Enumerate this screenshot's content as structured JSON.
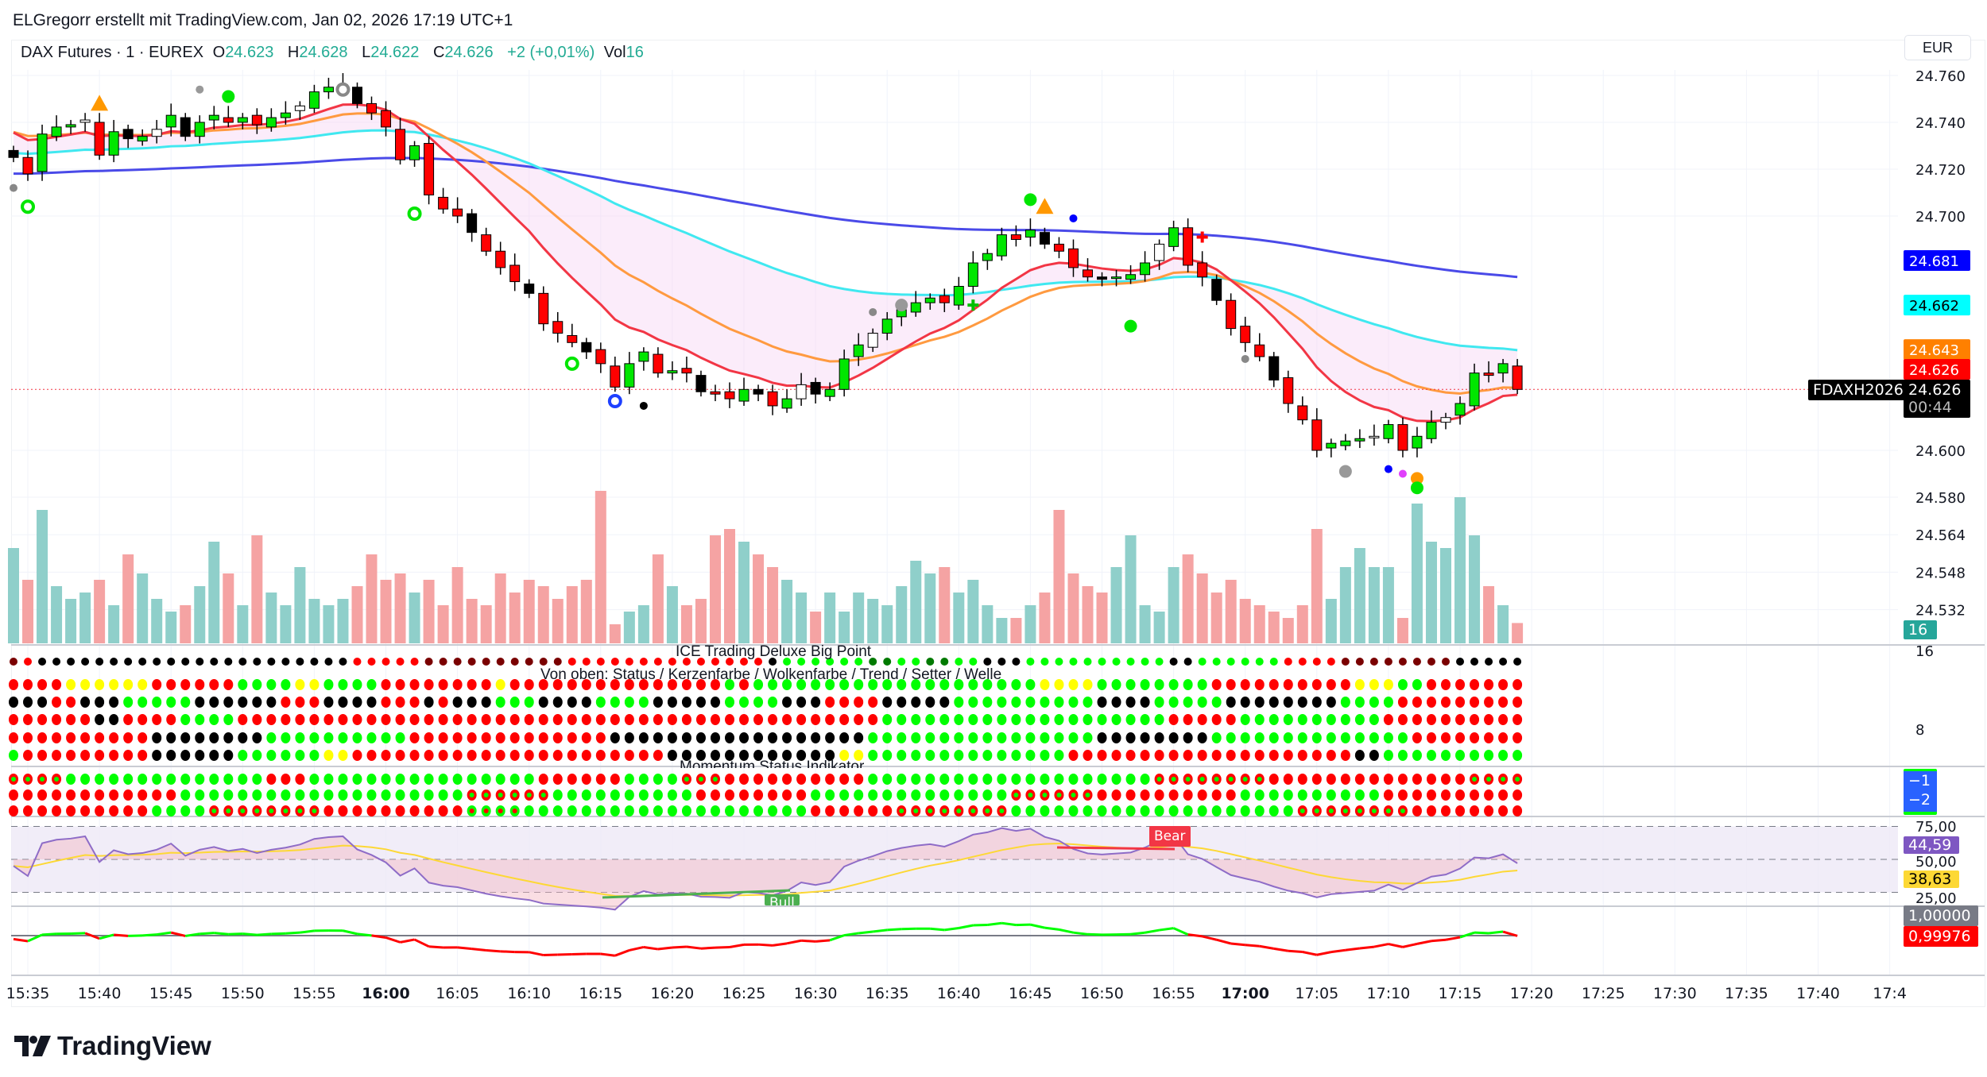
{
  "header": {
    "attribution": "ELGregorr erstellt mit TradingView.com, Jan 02, 2026 17:19 UTC+1"
  },
  "legend": {
    "symbol": "DAX Futures · 1 · EUREX",
    "o_label": "O",
    "o": "24.623",
    "h_label": "H",
    "h": "24.628",
    "l_label": "L",
    "l": "24.622",
    "c_label": "C",
    "c": "24.626",
    "change": "+2 (+0,01%)",
    "vol_label": "Vol",
    "vol": "16"
  },
  "currency": "EUR",
  "contract_label": "FDAXH2026",
  "countdown": "00:44",
  "footer": {
    "logo_text": "TradingView"
  },
  "colors": {
    "up": "#00e600",
    "down": "#ff0000",
    "vol_up": "#8fcfca",
    "vol_down": "#f5a3a3",
    "ema_fast": "#f23645",
    "ema_mid": "#ff9a40",
    "ema_slow": "#40e8f0",
    "ema_long": "#4a4ae8",
    "rsi": "#8e6cc7",
    "rsi_signal": "#fdd835"
  },
  "chart_data": {
    "type": "candlestick",
    "title": "DAX Futures · 1 · EUREX",
    "start_time": "15:34",
    "interval_minutes": 1,
    "closes": [
      24725,
      24718,
      24735,
      24738,
      24739,
      24741,
      24726,
      24736,
      24733,
      24734,
      24737,
      24743,
      24734,
      24740,
      24743,
      24740,
      24742,
      24739,
      24742,
      24744,
      24747,
      24753,
      24755,
      24756,
      24748,
      24744,
      24738,
      24724,
      24730,
      24709,
      24703,
      24700,
      24693,
      24685,
      24678,
      24672,
      24667,
      24654,
      24650,
      24646,
      24642,
      24637,
      24627,
      24637,
      24642,
      24633,
      24634,
      24633,
      24625,
      24624,
      24622,
      24626,
      24624,
      24619,
      24622,
      24628,
      24624,
      24626,
      24639,
      24645,
      24650,
      24656,
      24660,
      24663,
      24665,
      24663,
      24670,
      24680,
      24684,
      24692,
      24690,
      24694,
      24688,
      24685,
      24678,
      24674,
      24673,
      24674,
      24675,
      24680,
      24688,
      24695,
      24679,
      24674,
      24664,
      24652,
      24646,
      24640,
      24630,
      24620,
      24613,
      24600,
      24603,
      24604,
      24605,
      24606,
      24611,
      24600,
      24606,
      24612,
      24614,
      24620,
      24633,
      24632,
      24637,
      24626
    ],
    "volume": [
      75,
      50,
      105,
      45,
      35,
      40,
      50,
      30,
      70,
      55,
      35,
      25,
      30,
      45,
      80,
      55,
      30,
      85,
      40,
      30,
      60,
      35,
      30,
      35,
      45,
      70,
      50,
      55,
      40,
      50,
      30,
      60,
      35,
      30,
      55,
      40,
      50,
      45,
      35,
      45,
      50,
      120,
      15,
      25,
      30,
      70,
      45,
      30,
      35,
      85,
      90,
      80,
      70,
      60,
      50,
      40,
      25,
      40,
      25,
      40,
      35,
      30,
      45,
      65,
      55,
      60,
      40,
      50,
      30,
      20,
      20,
      30,
      40,
      105,
      55,
      45,
      40,
      60,
      85,
      30,
      25,
      60,
      70,
      55,
      40,
      50,
      35,
      30,
      25,
      20,
      30,
      90,
      35,
      60,
      75,
      60,
      60,
      20,
      110,
      80,
      75,
      115,
      85,
      45,
      30,
      16
    ],
    "price_axis": [
      "24.760",
      "24.740",
      "24.720",
      "24.700",
      "24.600",
      "24.580",
      "24.564",
      "24.548",
      "24.532"
    ],
    "price_axis_values": [
      24760,
      24740,
      24720,
      24700,
      24600,
      24580,
      24564,
      24548,
      24532
    ],
    "volume_axis": [
      "16",
      "8"
    ],
    "time_axis": [
      "15:35",
      "15:40",
      "15:45",
      "15:50",
      "15:55",
      "16:00",
      "16:05",
      "16:10",
      "16:15",
      "16:20",
      "16:25",
      "16:30",
      "16:35",
      "16:40",
      "16:45",
      "16:50",
      "16:55",
      "17:00",
      "17:05",
      "17:10",
      "17:15",
      "17:20",
      "17:25",
      "17:30",
      "17:35",
      "17:40",
      "17:4"
    ],
    "bold_times": [
      "16:00",
      "17:00"
    ],
    "ma_labels": [
      {
        "value": "24.681",
        "price": 24681,
        "bg": "#0000ff",
        "fg": "#ffffff"
      },
      {
        "value": "24.662",
        "price": 24662,
        "bg": "#00ffff",
        "fg": "#000000"
      },
      {
        "value": "24.643",
        "price": 24643,
        "bg": "#ff8000",
        "fg": "#ffffff"
      },
      {
        "value": "24.626",
        "price": 24626,
        "bg": "#ff0000",
        "fg": "#ffffff"
      }
    ],
    "last_price": "24.626",
    "last_price_value": 24626,
    "volume_label": "16",
    "markers": [
      {
        "i": 6,
        "p": 24748,
        "shape": "triangle",
        "color": "#ff9800"
      },
      {
        "i": 15,
        "p": 24751,
        "shape": "circle",
        "color": "#00e600"
      },
      {
        "i": 13,
        "p": 24754,
        "shape": "dot",
        "color": "#999999"
      },
      {
        "i": 23,
        "p": 24754,
        "shape": "ring",
        "color": "#888888"
      },
      {
        "i": 1,
        "p": 24704,
        "shape": "ring",
        "color": "#00e600"
      },
      {
        "i": 0,
        "p": 24712,
        "shape": "dot",
        "color": "#888888"
      },
      {
        "i": 28,
        "p": 24701,
        "shape": "ring",
        "color": "#00e600"
      },
      {
        "i": 39,
        "p": 24637,
        "shape": "ring",
        "color": "#00e600"
      },
      {
        "i": 42,
        "p": 24621,
        "shape": "ring",
        "color": "#1e40ff"
      },
      {
        "i": 44,
        "p": 24619,
        "shape": "dot",
        "color": "#000000"
      },
      {
        "i": 60,
        "p": 24659,
        "shape": "dot",
        "color": "#888888"
      },
      {
        "i": 62,
        "p": 24662,
        "shape": "circle",
        "color": "#999999"
      },
      {
        "i": 71,
        "p": 24707,
        "shape": "circle",
        "color": "#00e600"
      },
      {
        "i": 72,
        "p": 24704,
        "shape": "triangle",
        "color": "#ff9800"
      },
      {
        "i": 74,
        "p": 24699,
        "shape": "dot",
        "color": "#0000ff"
      },
      {
        "i": 78,
        "p": 24653,
        "shape": "circle",
        "color": "#00e600"
      },
      {
        "i": 83,
        "p": 24691,
        "shape": "cross",
        "color": "#ff0000"
      },
      {
        "i": 67,
        "p": 24662,
        "shape": "cross",
        "color": "#00c000"
      },
      {
        "i": 86,
        "p": 24639,
        "shape": "dot",
        "color": "#888888"
      },
      {
        "i": 93,
        "p": 24591,
        "shape": "circle",
        "color": "#999999"
      },
      {
        "i": 96,
        "p": 24592,
        "shape": "dot",
        "color": "#0000ff"
      },
      {
        "i": 97,
        "p": 24590,
        "shape": "dot",
        "color": "#e040fb"
      },
      {
        "i": 98,
        "p": 24588,
        "shape": "circle",
        "color": "#ff9800"
      },
      {
        "i": 98,
        "p": 24584,
        "shape": "circle",
        "color": "#00e600"
      }
    ]
  },
  "ice_pane": {
    "title": "ICE Trading Deluxe Big Point",
    "subtitle": "Von oben: Status / Kerzenfarbe / Wolkenfarbe / Trend / Setter / Welle",
    "dot_colors": {
      "R": "#ff0000",
      "G": "#00ff00",
      "K": "#000000",
      "Y": "#ffff00",
      "D": "#7a0000",
      "g": "#007a00"
    },
    "rows": [
      "D1R1K22R5D10R14K1G6g1g1G2g2G2K3G10K2G6R4D8K5",
      "R4Y6R6G4Y2G4R8Y1R15G1R1G20Y4G8R10Y3G2R7",
      "K3R2K3G5K6R3K4R3K1R1K3G3K4G4K5G4K3R4K5G10K4G5K8G4R9",
      "R6K2R4G4R45G20R5G10R10",
      "R10K8G10R14K18G16K8G14R8",
      "G1R9K6G6Y2R22K12Y2G14R20K2G10"
    ]
  },
  "momentum_pane": {
    "title": "Momentum Status Indikator",
    "dot_colors": {
      "R": "#ff0000",
      "G": "#00ff00",
      "r": "#ff0000",
      "g": "#00ff00"
    },
    "rows": [
      "r4G14R3G16R6G4r3R10G20r8R14r6",
      "R12G20r6G10R8G14r6R10G10R10",
      "R10G4r8R10g4G20R6r8G20r8R8"
    ],
    "labels": [
      "−1",
      "−2"
    ]
  },
  "rsi_pane": {
    "levels": [
      "75,00",
      "50,00",
      "25,00"
    ],
    "level_values": [
      75,
      50,
      25
    ],
    "rsi_value": "44,59",
    "signal_value": "38,63",
    "bear_label": "Bear",
    "bull_label": "Bull"
  },
  "ratio_pane": {
    "reference_value": "1,00000",
    "current_value": "0,99976"
  }
}
